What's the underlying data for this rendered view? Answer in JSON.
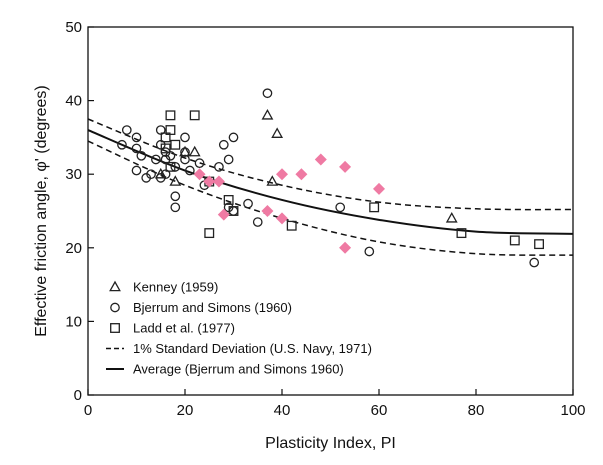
{
  "chart_data": {
    "type": "scatter",
    "xlabel": "Plasticity Index, PI",
    "ylabel": "Effective friction angle, φ' (degrees)",
    "xlim": [
      0,
      100
    ],
    "ylim": [
      0,
      50
    ],
    "x_ticks": [
      "0",
      "20",
      "40",
      "60",
      "80",
      "100"
    ],
    "y_ticks": [
      "0",
      "10",
      "20",
      "30",
      "40",
      "50"
    ],
    "grid": false,
    "legend_position": "bottom-left",
    "colors": {
      "axis": "#111111",
      "marker": "#222222",
      "pink": "#ef7aa3"
    },
    "series": [
      {
        "name": "Kenney (1959)",
        "marker": "triangle",
        "points": [
          [
            15,
            30
          ],
          [
            18,
            29
          ],
          [
            20,
            33
          ],
          [
            22,
            33
          ],
          [
            37,
            38
          ],
          [
            38,
            29
          ],
          [
            39,
            35.5
          ],
          [
            75,
            24
          ]
        ]
      },
      {
        "name": "Bjerrum and Simons (1960)",
        "marker": "circle",
        "points": [
          [
            7,
            34
          ],
          [
            8,
            36
          ],
          [
            10,
            35
          ],
          [
            10,
            33.5
          ],
          [
            10,
            30.5
          ],
          [
            11,
            32.5
          ],
          [
            12,
            29.5
          ],
          [
            13,
            30
          ],
          [
            14,
            32
          ],
          [
            15,
            36
          ],
          [
            15,
            34
          ],
          [
            16,
            32
          ],
          [
            15,
            29.5
          ],
          [
            16,
            30
          ],
          [
            16,
            33
          ],
          [
            17,
            32.5
          ],
          [
            18,
            31
          ],
          [
            18,
            27
          ],
          [
            18,
            25.5
          ],
          [
            20,
            35
          ],
          [
            20,
            32
          ],
          [
            20,
            33
          ],
          [
            21,
            30.5
          ],
          [
            23,
            31.5
          ],
          [
            24,
            28.5
          ],
          [
            27,
            31
          ],
          [
            28,
            34
          ],
          [
            29,
            32
          ],
          [
            29,
            25.5
          ],
          [
            30,
            25
          ],
          [
            30,
            35
          ],
          [
            33,
            26
          ],
          [
            35,
            23.5
          ],
          [
            37,
            41
          ],
          [
            52,
            25.5
          ],
          [
            58,
            19.5
          ],
          [
            92,
            18
          ]
        ]
      },
      {
        "name": "Ladd et al. (1977)",
        "marker": "square",
        "points": [
          [
            16,
            35
          ],
          [
            16,
            33.5
          ],
          [
            17,
            36
          ],
          [
            17,
            31
          ],
          [
            17,
            38
          ],
          [
            18,
            34
          ],
          [
            22,
            38
          ],
          [
            25,
            22
          ],
          [
            25,
            29
          ],
          [
            29,
            26.5
          ],
          [
            30,
            25
          ],
          [
            42,
            23
          ],
          [
            59,
            25.5
          ],
          [
            77,
            22
          ],
          [
            88,
            21
          ],
          [
            93,
            20.5
          ]
        ]
      },
      {
        "name": "",
        "marker": "diamond",
        "color": "#ef7aa3",
        "points": [
          [
            23,
            30
          ],
          [
            25,
            29
          ],
          [
            27,
            29
          ],
          [
            28,
            24.5
          ],
          [
            37,
            25
          ],
          [
            40,
            30
          ],
          [
            40,
            24
          ],
          [
            44,
            30
          ],
          [
            48,
            32
          ],
          [
            53,
            31
          ],
          [
            53,
            20
          ],
          [
            60,
            28
          ]
        ]
      }
    ],
    "curves": [
      {
        "name": "1% Standard Deviation (U.S. Navy, 1971)",
        "style": "dashed",
        "points": [
          [
            0,
            37.5
          ],
          [
            20,
            32.2
          ],
          [
            40,
            28.5
          ],
          [
            60,
            26.2
          ],
          [
            80,
            25.3
          ],
          [
            100,
            25.2
          ]
        ]
      },
      {
        "name": "1% Standard Deviation (U.S. Navy, 1971)",
        "style": "dashed",
        "points": [
          [
            0,
            34.5
          ],
          [
            20,
            28.5
          ],
          [
            40,
            24
          ],
          [
            60,
            20.8
          ],
          [
            80,
            19.2
          ],
          [
            100,
            19.0
          ]
        ]
      },
      {
        "name": "Average (Bjerrum and Simons 1960)",
        "style": "solid",
        "points": [
          [
            0,
            36
          ],
          [
            20,
            30.5
          ],
          [
            40,
            26.5
          ],
          [
            60,
            23.8
          ],
          [
            80,
            22.2
          ],
          [
            100,
            21.9
          ]
        ]
      }
    ],
    "legend": [
      {
        "marker": "triangle",
        "label": "Kenney (1959)"
      },
      {
        "marker": "circle",
        "label": "Bjerrum and Simons (1960)"
      },
      {
        "marker": "square",
        "label": "Ladd et al. (1977)"
      },
      {
        "marker": "dashed",
        "label": "1% Standard Deviation (U.S. Navy, 1971)"
      },
      {
        "marker": "solid",
        "label": "Average (Bjerrum and Simons 1960)"
      }
    ]
  }
}
